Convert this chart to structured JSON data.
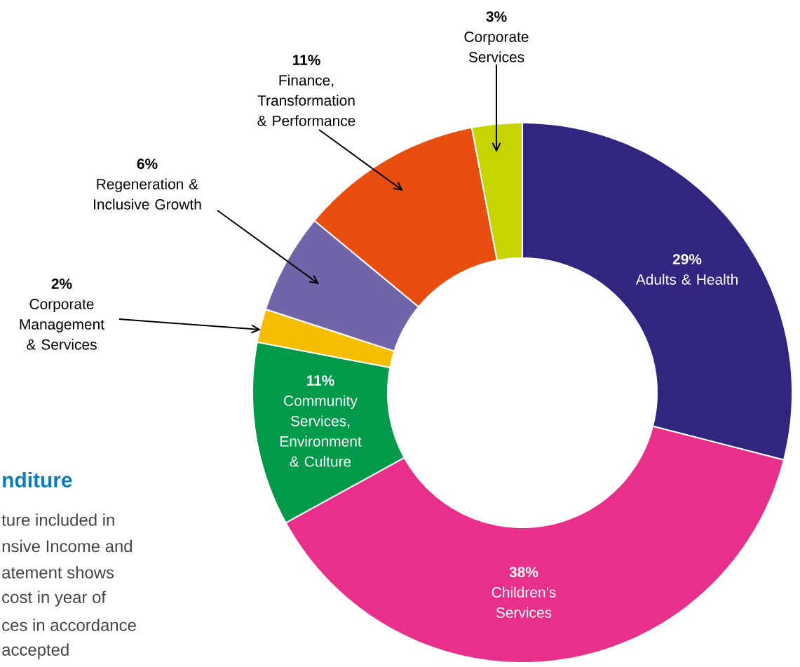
{
  "chart_data": {
    "type": "donut",
    "title": "nditure",
    "annotations": [
      "ture included in",
      "nsive Income and",
      "atement shows",
      "cost in year of",
      "ces in accordance",
      "accepted"
    ],
    "categories": [
      "Adults & Health",
      "Children’s Services",
      "Community Services, Environment & Culture",
      "Corporate Management & Services",
      "Regeneration & Inclusive Growth",
      "Finance, Transformation & Performance",
      "Corporate Services"
    ],
    "values": [
      29,
      38,
      11,
      2,
      6,
      11,
      3
    ],
    "value_labels": [
      "29%",
      "38%",
      "11%",
      "2%",
      "6%",
      "11%",
      "3%"
    ],
    "colors": [
      "#31267f",
      "#e8308a",
      "#009a4a",
      "#f6be00",
      "#7264a8",
      "#e84e0f",
      "#c8d400"
    ]
  }
}
